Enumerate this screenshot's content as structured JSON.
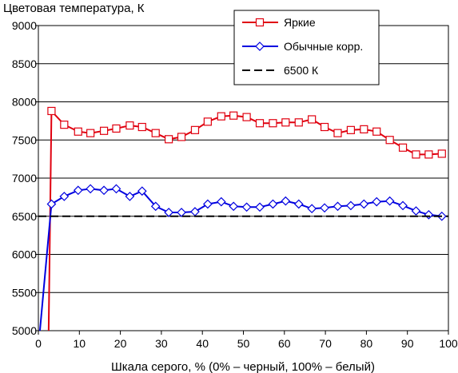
{
  "chart_data": {
    "type": "line",
    "title": "",
    "ylabel": "Цветовая температура, К",
    "xlabel": "Шкала серого, % (0% – черный, 100% – белый)",
    "xlim": [
      0,
      100
    ],
    "ylim": [
      5000,
      9000
    ],
    "xticks": [
      0,
      10,
      20,
      30,
      40,
      50,
      60,
      70,
      80,
      90,
      100
    ],
    "yticks": [
      5000,
      5500,
      6000,
      6500,
      7000,
      7500,
      8000,
      8500,
      9000
    ],
    "grid": "horizontal",
    "legend_position": "top-right",
    "series": [
      {
        "name": "Яркие",
        "color": "#e0000f",
        "marker": "square",
        "x": [
          2.5,
          3.2,
          6.3,
          9.7,
          12.7,
          16.0,
          19.0,
          22.3,
          25.3,
          28.6,
          31.8,
          34.9,
          38.2,
          41.3,
          44.6,
          47.6,
          50.8,
          54.0,
          57.2,
          60.3,
          63.5,
          66.7,
          69.8,
          73.0,
          76.2,
          79.4,
          82.5,
          85.7,
          88.9,
          92.1,
          95.2,
          98.4
        ],
        "y": [
          4950,
          7880,
          7700,
          7610,
          7590,
          7620,
          7650,
          7690,
          7670,
          7590,
          7510,
          7540,
          7630,
          7740,
          7810,
          7820,
          7800,
          7720,
          7720,
          7730,
          7730,
          7770,
          7670,
          7590,
          7630,
          7640,
          7610,
          7500,
          7400,
          7310,
          7310,
          7320
        ]
      },
      {
        "name": "Обычные корр.",
        "color": "#0000e0",
        "marker": "diamond",
        "x": [
          0.3,
          3.2,
          6.3,
          9.7,
          12.7,
          16.0,
          19.0,
          22.3,
          25.3,
          28.6,
          31.8,
          34.9,
          38.2,
          41.3,
          44.6,
          47.6,
          50.8,
          54.0,
          57.2,
          60.3,
          63.5,
          66.7,
          69.8,
          73.0,
          76.2,
          79.4,
          82.5,
          85.7,
          88.9,
          92.1,
          95.2,
          98.4
        ],
        "y": [
          4950,
          6660,
          6760,
          6840,
          6860,
          6840,
          6860,
          6760,
          6830,
          6630,
          6550,
          6550,
          6560,
          6660,
          6690,
          6630,
          6620,
          6620,
          6660,
          6700,
          6660,
          6600,
          6610,
          6630,
          6640,
          6660,
          6690,
          6700,
          6640,
          6570,
          6520,
          6500
        ]
      },
      {
        "name": "6500 К",
        "color": "#000000",
        "marker": "none",
        "dash": true,
        "x": [
          0,
          100
        ],
        "y": [
          6500,
          6500
        ]
      }
    ]
  }
}
